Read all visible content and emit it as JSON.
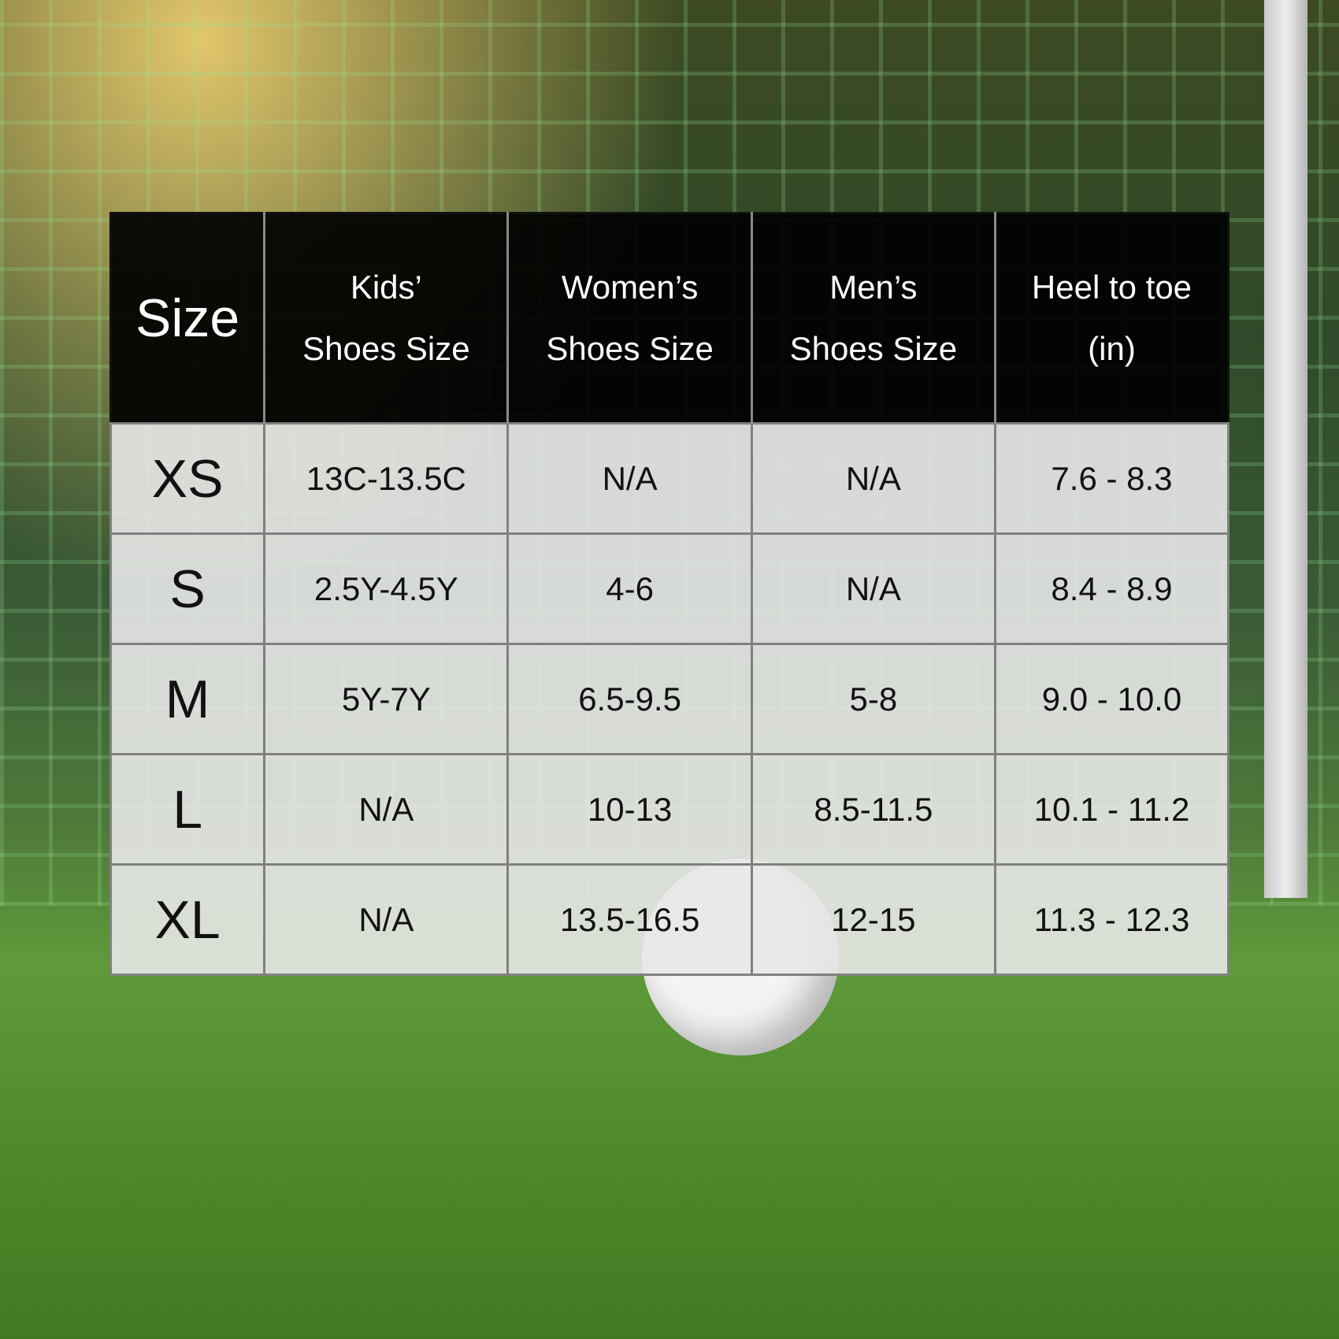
{
  "table": {
    "headers": [
      {
        "line1": "Size",
        "line2": ""
      },
      {
        "line1": "Kids’",
        "line2": "Shoes Size"
      },
      {
        "line1": "Women’s",
        "line2": "Shoes Size"
      },
      {
        "line1": "Men’s",
        "line2": "Shoes Size"
      },
      {
        "line1": "Heel to toe",
        "line2": "(in)"
      }
    ],
    "rows": [
      [
        "XS",
        "13C-13.5C",
        "N/A",
        "N/A",
        "7.6 - 8.3"
      ],
      [
        "S",
        "2.5Y-4.5Y",
        "4-6",
        "N/A",
        "8.4 - 8.9"
      ],
      [
        "M",
        "5Y-7Y",
        "6.5-9.5",
        "5-8",
        "9.0 - 10.0"
      ],
      [
        "L",
        "N/A",
        "10-13",
        "8.5-11.5",
        "10.1 - 11.2"
      ],
      [
        "XL",
        "N/A",
        "13.5-16.5",
        "12-15",
        "11.3 - 12.3"
      ]
    ]
  }
}
